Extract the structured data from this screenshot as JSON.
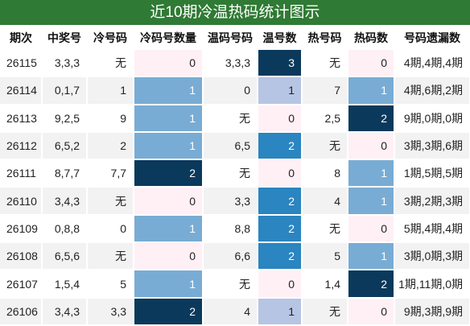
{
  "title": "近10期冷温热码统计图示",
  "header": {
    "columns": [
      "期次",
      "中奖号",
      "冷号码",
      "冷码号数量",
      "温码号码",
      "温号数",
      "热号码",
      "热码数",
      "号码遗漏数"
    ]
  },
  "scales": {
    "cold": {
      "fills": [
        "#fff0f6",
        "#79acd4",
        "#0a395b"
      ],
      "text": [
        "#222",
        "#fff",
        "#fff"
      ]
    },
    "warm": {
      "fills": [
        "#fff0f6",
        "#b6c5e4",
        "#2a85c0",
        "#0a395b"
      ],
      "text": [
        "#222",
        "#222",
        "#fff",
        "#fff"
      ]
    },
    "hot": {
      "fills": [
        "#fff0f6",
        "#79acd4",
        "#0a395b"
      ],
      "text": [
        "#222",
        "#fff",
        "#fff"
      ]
    }
  },
  "table": {
    "rows": [
      [
        "26115",
        "3,3,3",
        "无",
        0,
        "3,3,3",
        3,
        "无",
        0,
        "4期,4期,4期"
      ],
      [
        "26114",
        "0,1,7",
        "1",
        1,
        "0",
        1,
        "7",
        1,
        "4期,6期,2期"
      ],
      [
        "26113",
        "9,2,5",
        "9",
        1,
        "无",
        0,
        "2,5",
        2,
        "9期,0期,0期"
      ],
      [
        "26112",
        "6,5,2",
        "2",
        1,
        "6,5",
        2,
        "无",
        0,
        "3期,3期,6期"
      ],
      [
        "26111",
        "8,7,7",
        "7,7",
        2,
        "无",
        0,
        "8",
        1,
        "1期,5期,5期"
      ],
      [
        "26110",
        "3,4,3",
        "无",
        0,
        "3,3",
        2,
        "4",
        1,
        "3期,2期,3期"
      ],
      [
        "26109",
        "0,8,8",
        "0",
        1,
        "8,8",
        2,
        "无",
        0,
        "5期,4期,4期"
      ],
      [
        "26108",
        "6,5,6",
        "无",
        0,
        "6,6",
        2,
        "5",
        1,
        "3期,0期,3期"
      ],
      [
        "26107",
        "1,5,4",
        "5",
        1,
        "无",
        0,
        "1,4",
        2,
        "1期,11期,0期"
      ],
      [
        "26106",
        "3,4,3",
        "3,3",
        2,
        "4",
        1,
        "无",
        0,
        "9期,3期,9期"
      ]
    ]
  }
}
